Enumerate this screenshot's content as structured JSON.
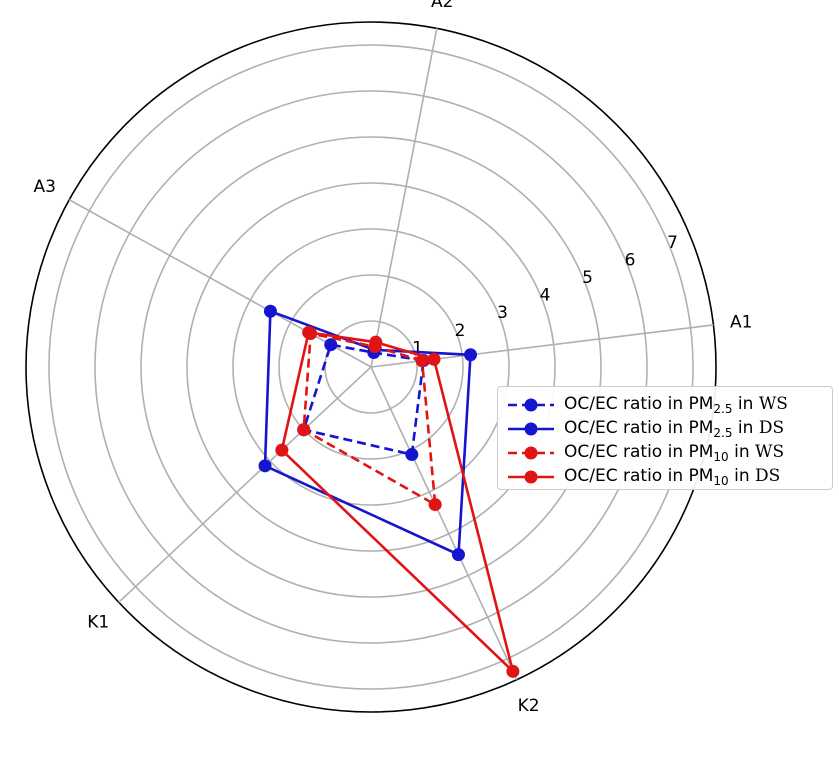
{
  "chart_data": {
    "type": "radar",
    "axes": [
      "A1",
      "A2",
      "A3",
      "K1",
      "K2"
    ],
    "rlim": [
      0,
      7.5
    ],
    "rticks": [
      "1",
      "2",
      "3",
      "4",
      "5",
      "6",
      "7"
    ],
    "grid": true,
    "legend_position": "right",
    "series": [
      {
        "legend_prefix": "OC/EC ratio in PM",
        "legend_sub": "2.5",
        "legend_mid": " in ",
        "legend_season": "WS",
        "color": "#1515cf",
        "style": "dashed",
        "values": [
          1.15,
          0.32,
          1.0,
          2.0,
          2.1
        ]
      },
      {
        "legend_prefix": "OC/EC ratio in PM",
        "legend_sub": "2.5",
        "legend_mid": " in ",
        "legend_season": "DS",
        "color": "#1515cf",
        "style": "solid",
        "values": [
          2.18,
          0.38,
          2.5,
          3.15,
          4.5
        ]
      },
      {
        "legend_prefix": "OC/EC ratio in PM",
        "legend_sub": "10",
        "legend_mid": " in ",
        "legend_season": "WS",
        "color": "#e01414",
        "style": "dashed",
        "values": [
          1.12,
          0.45,
          1.5,
          2.0,
          3.3
        ]
      },
      {
        "legend_prefix": "OC/EC ratio in PM",
        "legend_sub": "10",
        "legend_mid": " in ",
        "legend_season": "DS",
        "color": "#e01414",
        "style": "solid",
        "values": [
          1.38,
          0.55,
          1.55,
          2.65,
          7.3
        ]
      }
    ]
  }
}
